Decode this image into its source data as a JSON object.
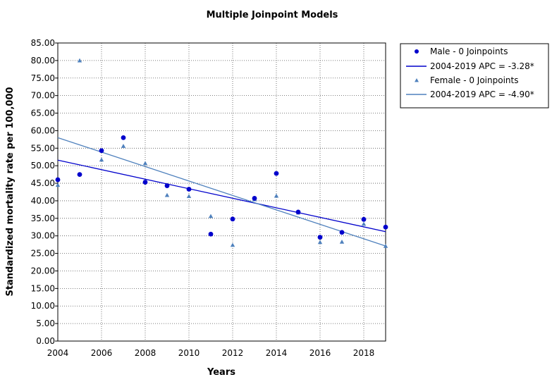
{
  "chart_data": {
    "type": "scatter",
    "title": "Multiple Joinpoint Models",
    "xlabel": "Years",
    "ylabel": "Standardized mortality rate per 100,000",
    "xlim": [
      2004,
      2019
    ],
    "ylim": [
      0,
      85
    ],
    "x_ticks": [
      "2004",
      "2006",
      "2008",
      "2010",
      "2012",
      "2014",
      "2016",
      "2018"
    ],
    "x_tick_values": [
      2004,
      2006,
      2008,
      2010,
      2012,
      2014,
      2016,
      2018
    ],
    "y_ticks": [
      "0.00",
      "5.00",
      "10.00",
      "15.00",
      "20.00",
      "25.00",
      "30.00",
      "35.00",
      "40.00",
      "45.00",
      "50.00",
      "55.00",
      "60.00",
      "65.00",
      "70.00",
      "75.00",
      "80.00",
      "85.00"
    ],
    "y_tick_values": [
      0,
      5,
      10,
      15,
      20,
      25,
      30,
      35,
      40,
      45,
      50,
      55,
      60,
      65,
      70,
      75,
      80,
      85
    ],
    "grid": true,
    "legend_position": "right",
    "series": [
      {
        "name": "Male - 0 Joinpoints",
        "kind": "points",
        "marker": "circle",
        "color": "#0000cc",
        "x": [
          2004,
          2005,
          2006,
          2007,
          2008,
          2009,
          2010,
          2011,
          2012,
          2013,
          2014,
          2015,
          2016,
          2017,
          2018,
          2019
        ],
        "y": [
          46.0,
          47.5,
          54.3,
          58.0,
          45.3,
          44.3,
          43.3,
          30.5,
          34.8,
          40.7,
          47.8,
          36.8,
          29.6,
          31.0,
          34.7,
          32.5
        ]
      },
      {
        "name": "2004-2019 APC  = -3.28*",
        "kind": "line",
        "color": "#0000cc",
        "x": [
          2004,
          2019
        ],
        "y": [
          51.6,
          31.2
        ]
      },
      {
        "name": "Female - 0 Joinpoints",
        "kind": "points",
        "marker": "triangle",
        "color": "#4f81bd",
        "x": [
          2004,
          2005,
          2006,
          2007,
          2008,
          2009,
          2010,
          2011,
          2012,
          2013,
          2014,
          2015,
          2016,
          2017,
          2018,
          2019
        ],
        "y": [
          44.5,
          80.0,
          51.7,
          55.6,
          50.7,
          41.6,
          41.3,
          35.6,
          27.4,
          40.4,
          41.4,
          36.6,
          28.2,
          28.3,
          33.4,
          27.1
        ]
      },
      {
        "name": "2004-2019 APC  = -4.90*",
        "kind": "line",
        "color": "#4f81bd",
        "x": [
          2004,
          2019
        ],
        "y": [
          58.0,
          27.1
        ]
      }
    ]
  }
}
